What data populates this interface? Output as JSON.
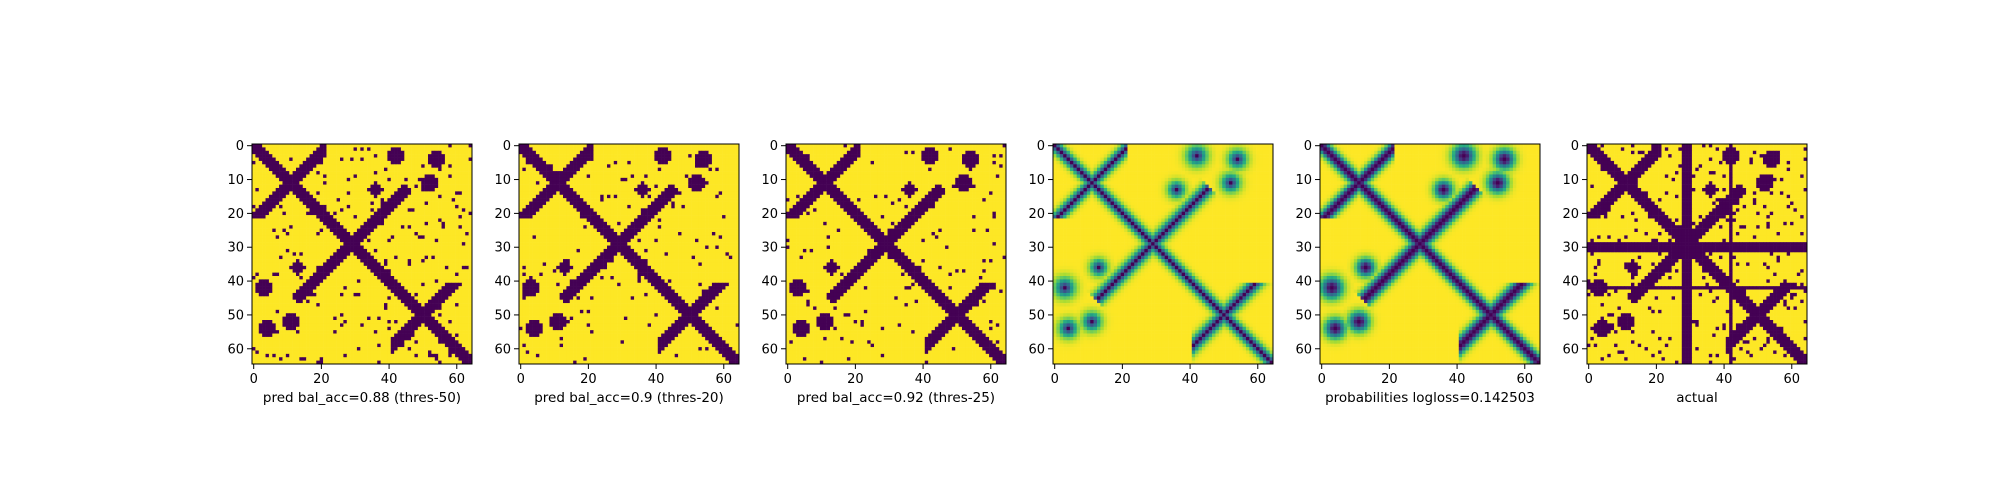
{
  "figure": {
    "background": "#ffffff"
  },
  "chart_data": [
    {
      "type": "heatmap",
      "panel": "pred-thres-50",
      "xlabel": "pred bal_acc=0.88 (thres-50)",
      "xticks": [
        0,
        20,
        40,
        60
      ],
      "yticks": [
        0,
        10,
        20,
        30,
        40,
        50,
        60
      ],
      "xlim": [
        0,
        65
      ],
      "ylim": [
        65,
        0
      ],
      "colormap": "viridis",
      "binary": true,
      "noise": 0.05,
      "values_note": "binary contact map: dark = 0, yellow = 1; cross-shaped diagonal pattern with blobs"
    },
    {
      "type": "heatmap",
      "panel": "pred-thres-20",
      "xlabel": "pred bal_acc=0.9 (thres-20)",
      "xticks": [
        0,
        20,
        40,
        60
      ],
      "yticks": [
        0,
        10,
        20,
        30,
        40,
        50,
        60
      ],
      "xlim": [
        0,
        65
      ],
      "ylim": [
        65,
        0
      ],
      "colormap": "viridis",
      "binary": true,
      "noise": 0.03
    },
    {
      "type": "heatmap",
      "panel": "pred-thres-25",
      "xlabel": "pred bal_acc=0.92 (thres-25)",
      "xticks": [
        0,
        20,
        40,
        60
      ],
      "yticks": [
        0,
        10,
        20,
        30,
        40,
        50,
        60
      ],
      "xlim": [
        0,
        65
      ],
      "ylim": [
        65,
        0
      ],
      "colormap": "viridis",
      "binary": true,
      "noise": 0.03
    },
    {
      "type": "heatmap",
      "panel": "probabilities-raw",
      "xlabel": "",
      "xticks": [
        0,
        20,
        40,
        60
      ],
      "yticks": [
        0,
        10,
        20,
        30,
        40,
        50,
        60
      ],
      "xlim": [
        0,
        65
      ],
      "ylim": [
        65,
        0
      ],
      "colormap": "viridis",
      "binary": false,
      "noise": 0.0
    },
    {
      "type": "heatmap",
      "panel": "probabilities-logloss",
      "xlabel": "probabilities logloss=0.142503",
      "xticks": [
        0,
        20,
        40,
        60
      ],
      "yticks": [
        0,
        10,
        20,
        30,
        40,
        50,
        60
      ],
      "xlim": [
        0,
        65
      ],
      "ylim": [
        65,
        0
      ],
      "colormap": "viridis",
      "binary": false,
      "noise": 0.0
    },
    {
      "type": "heatmap",
      "panel": "actual",
      "xlabel": "actual",
      "xticks": [
        0,
        20,
        40,
        60
      ],
      "yticks": [
        0,
        10,
        20,
        30,
        40,
        50,
        60
      ],
      "xlim": [
        0,
        65
      ],
      "ylim": [
        65,
        0
      ],
      "colormap": "viridis",
      "binary": true,
      "noise": 0.08,
      "bands": {
        "rows": [
          29,
          30,
          31,
          42
        ],
        "cols": [
          28,
          29,
          30,
          42
        ]
      }
    }
  ],
  "colors": {
    "low": "#440154",
    "mid": "#21918c",
    "high": "#fde725"
  }
}
